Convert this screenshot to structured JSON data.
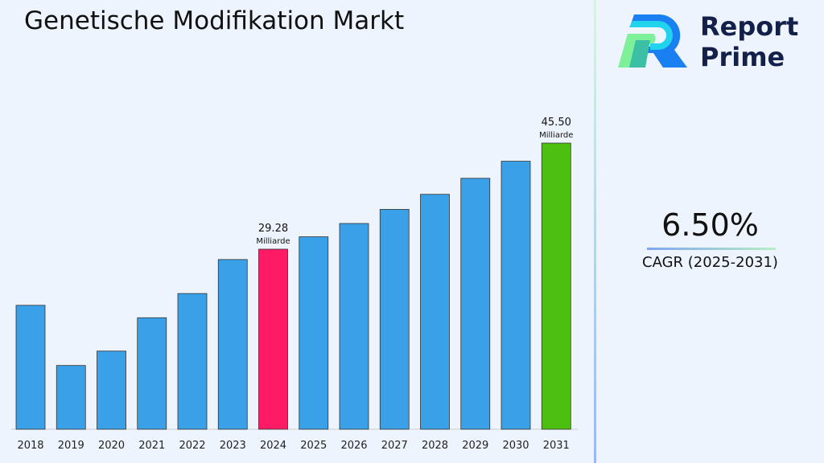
{
  "title": "Genetische Modifikation Markt",
  "logo": {
    "line1": "Report",
    "line2": "Prime"
  },
  "cagr": {
    "value": "6.50%",
    "label": "CAGR (2025-2031)"
  },
  "colors": {
    "default": "#3aa0e8",
    "highlight_2024": "#ff1a66",
    "highlight_2031": "#4cbf10"
  },
  "chart_data": {
    "type": "bar",
    "title": "Genetische Modifikation Markt",
    "categories": [
      "2018",
      "2019",
      "2020",
      "2021",
      "2022",
      "2023",
      "2024",
      "2025",
      "2026",
      "2027",
      "2028",
      "2029",
      "2030",
      "2031"
    ],
    "values": [
      20.7,
      11.5,
      13.7,
      18.8,
      22.5,
      27.7,
      29.28,
      31.18,
      33.21,
      35.37,
      37.67,
      40.12,
      42.73,
      45.5
    ],
    "data_labels": [
      {
        "index": 6,
        "value": "29.28",
        "unit": "Milliarde"
      },
      {
        "index": 13,
        "value": "45.50",
        "unit": "Milliarde"
      }
    ],
    "xlabel": "",
    "ylabel": "",
    "grid": false
  }
}
